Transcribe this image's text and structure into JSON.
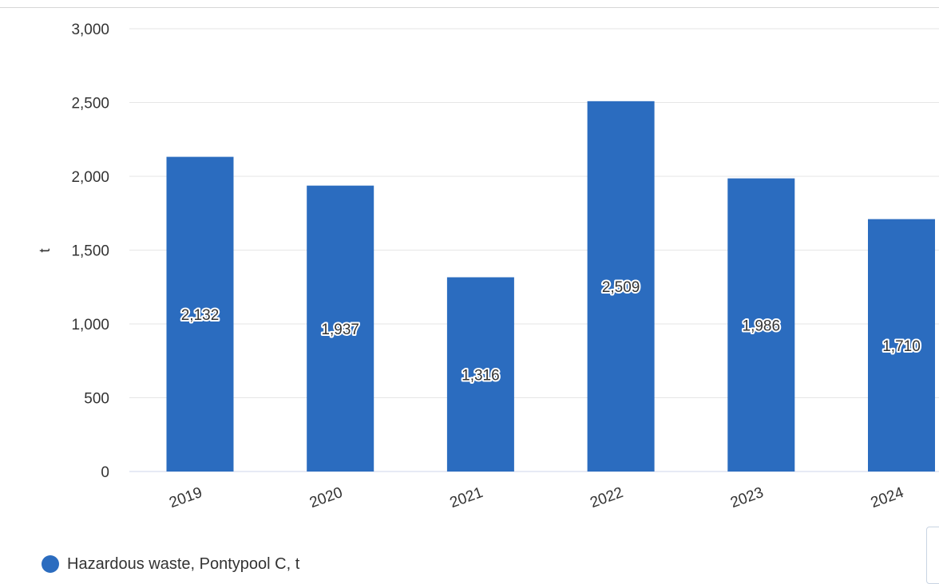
{
  "colors": {
    "bar": "#2b6cbf",
    "grid": "#e6e6e6",
    "axis": "#ccd6eb"
  },
  "chart_data": {
    "type": "bar",
    "categories": [
      "2019",
      "2020",
      "2021",
      "2022",
      "2023",
      "2024"
    ],
    "series": [
      {
        "name": "Hazardous waste, Pontypool C, t",
        "values": [
          2132,
          1937,
          1316,
          2509,
          1986,
          1710
        ]
      }
    ],
    "data_labels": [
      "2,132",
      "1,937",
      "1,316",
      "2,509",
      "1,986",
      "1,710"
    ],
    "ylabel": "t",
    "ylim": [
      0,
      3000
    ],
    "yticks": [
      0,
      500,
      1000,
      1500,
      2000,
      2500,
      3000
    ],
    "ytick_labels": [
      "0",
      "500",
      "1,000",
      "1,500",
      "2,000",
      "2,500",
      "3,000"
    ],
    "grid": true,
    "legend_position": "bottom-left"
  }
}
